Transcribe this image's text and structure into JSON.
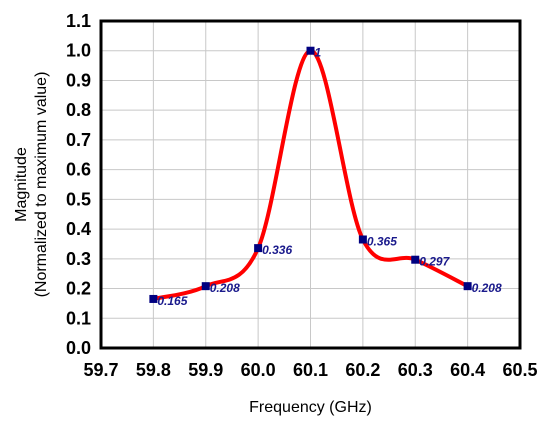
{
  "chart_data": {
    "type": "line",
    "title": "",
    "xlabel": "Frequency (GHz)",
    "ylabel_lines": [
      "Magnitude",
      "(Normalized to maximum value)"
    ],
    "xlim": [
      59.7,
      60.5
    ],
    "ylim": [
      0.0,
      1.1
    ],
    "x_ticks": [
      "59.7",
      "59.8",
      "59.9",
      "60.0",
      "60.1",
      "60.2",
      "60.3",
      "60.4",
      "60.5"
    ],
    "y_ticks": [
      "0.0",
      "0.1",
      "0.2",
      "0.3",
      "0.4",
      "0.5",
      "0.6",
      "0.7",
      "0.8",
      "0.9",
      "1.0",
      "1.1"
    ],
    "grid": true,
    "series": [
      {
        "x": [
          59.8,
          59.9,
          60.0,
          60.1,
          60.2,
          60.3,
          60.4
        ],
        "y": [
          0.165,
          0.208,
          0.336,
          1.0,
          0.365,
          0.297,
          0.208
        ],
        "labels": [
          "0.165",
          "0.208",
          "0.336",
          "1",
          "0.365",
          "0.297",
          "0.208"
        ],
        "line_color": "#ff0000",
        "marker_color": "#000080"
      }
    ]
  }
}
